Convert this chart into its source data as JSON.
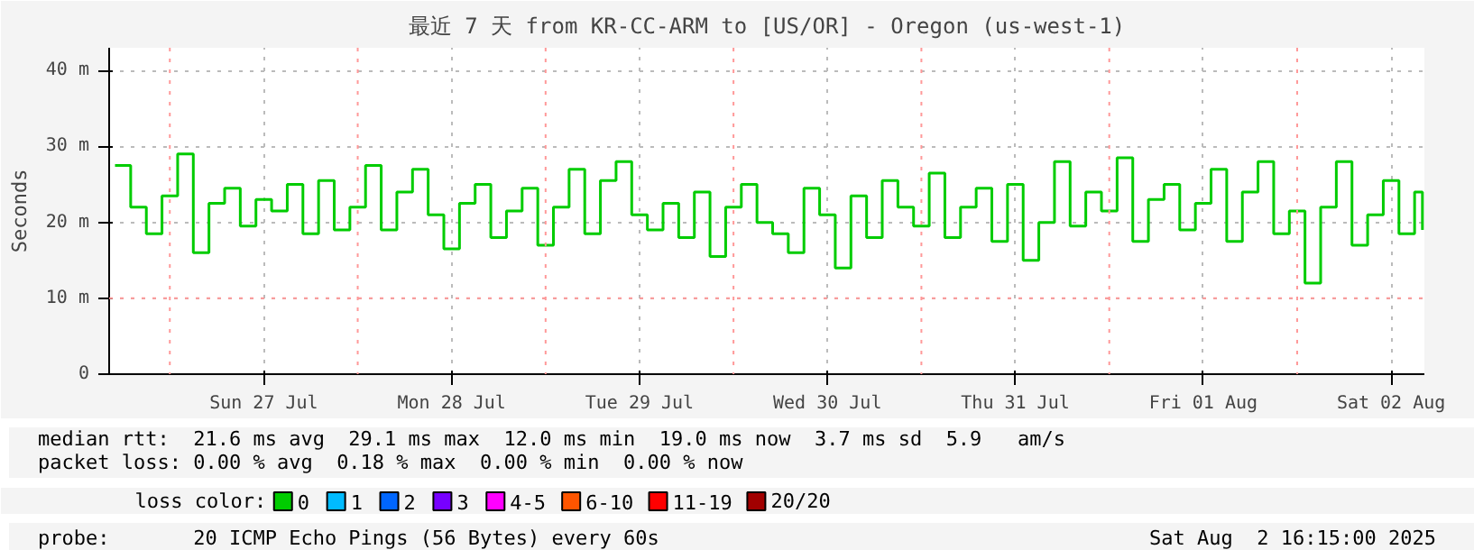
{
  "chart_data": {
    "type": "step",
    "title": "最近 7 天 from KR-CC-ARM to [US/OR] - Oregon (us-west-1)",
    "ylabel": "Seconds",
    "legend_title": "loss color:",
    "legend": "bottom",
    "grid": true,
    "line_style": "solid",
    "xlim": [
      "2025-07-26T16:15",
      "2025-08-02T16:15"
    ],
    "xticks": [
      {
        "value": "2025-07-27T12:00",
        "label": "Sun 27 Jul"
      },
      {
        "value": "2025-07-28T12:00",
        "label": "Mon 28 Jul"
      },
      {
        "value": "2025-07-29T12:00",
        "label": "Tue 29 Jul"
      },
      {
        "value": "2025-07-30T12:00",
        "label": "Wed 30 Jul"
      },
      {
        "value": "2025-07-31T12:00",
        "label": "Thu 31 Jul"
      },
      {
        "value": "2025-08-01T12:00",
        "label": "Fri 01 Aug"
      },
      {
        "value": "2025-08-02T12:00",
        "label": "Sat 02 Aug"
      }
    ],
    "ylim": [
      0,
      43
    ],
    "yticks": [
      0,
      {
        "value": 10,
        "label": "10 m"
      },
      {
        "value": 20,
        "label": "20 m"
      },
      {
        "value": 30,
        "label": "30 m"
      },
      {
        "value": 40,
        "label": "40 m"
      }
    ],
    "ref_lines": [
      {
        "axis": "x",
        "value": "2025-07-27T00:00",
        "color": "#ff9999",
        "line_style": "dotted"
      },
      {
        "axis": "x",
        "value": "2025-07-28T00:00",
        "color": "#ff9999",
        "line_style": "dotted"
      },
      {
        "axis": "x",
        "value": "2025-07-29T00:00",
        "color": "#ff9999",
        "line_style": "dotted"
      },
      {
        "axis": "x",
        "value": "2025-07-30T00:00",
        "color": "#ff9999",
        "line_style": "dotted"
      },
      {
        "axis": "x",
        "value": "2025-07-31T00:00",
        "color": "#ff9999",
        "line_style": "dotted"
      },
      {
        "axis": "x",
        "value": "2025-08-01T00:00",
        "color": "#ff9999",
        "line_style": "dotted"
      },
      {
        "axis": "x",
        "value": "2025-08-02T00:00",
        "color": "#ff9999",
        "line_style": "dotted"
      },
      {
        "axis": "y",
        "value": 10,
        "color": "#ff9999",
        "line_style": "dotted"
      }
    ],
    "x": [
      "2025-07-26T17:00",
      "2025-07-26T19:00",
      "2025-07-26T21:00",
      "2025-07-26T23:00",
      "2025-07-27T01:00",
      "2025-07-27T03:00",
      "2025-07-27T05:00",
      "2025-07-27T07:00",
      "2025-07-27T09:00",
      "2025-07-27T11:00",
      "2025-07-27T13:00",
      "2025-07-27T15:00",
      "2025-07-27T17:00",
      "2025-07-27T19:00",
      "2025-07-27T21:00",
      "2025-07-27T23:00",
      "2025-07-28T01:00",
      "2025-07-28T03:00",
      "2025-07-28T05:00",
      "2025-07-28T07:00",
      "2025-07-28T09:00",
      "2025-07-28T11:00",
      "2025-07-28T13:00",
      "2025-07-28T15:00",
      "2025-07-28T17:00",
      "2025-07-28T19:00",
      "2025-07-28T21:00",
      "2025-07-28T23:00",
      "2025-07-29T01:00",
      "2025-07-29T03:00",
      "2025-07-29T05:00",
      "2025-07-29T07:00",
      "2025-07-29T09:00",
      "2025-07-29T11:00",
      "2025-07-29T13:00",
      "2025-07-29T15:00",
      "2025-07-29T17:00",
      "2025-07-29T19:00",
      "2025-07-29T21:00",
      "2025-07-29T23:00",
      "2025-07-30T01:00",
      "2025-07-30T03:00",
      "2025-07-30T05:00",
      "2025-07-30T07:00",
      "2025-07-30T09:00",
      "2025-07-30T11:00",
      "2025-07-30T13:00",
      "2025-07-30T15:00",
      "2025-07-30T17:00",
      "2025-07-30T19:00",
      "2025-07-30T21:00",
      "2025-07-30T23:00",
      "2025-07-31T01:00",
      "2025-07-31T03:00",
      "2025-07-31T05:00",
      "2025-07-31T07:00",
      "2025-07-31T09:00",
      "2025-07-31T11:00",
      "2025-07-31T13:00",
      "2025-07-31T15:00",
      "2025-07-31T17:00",
      "2025-07-31T19:00",
      "2025-07-31T21:00",
      "2025-07-31T23:00",
      "2025-08-01T01:00",
      "2025-08-01T03:00",
      "2025-08-01T05:00",
      "2025-08-01T07:00",
      "2025-08-01T09:00",
      "2025-08-01T11:00",
      "2025-08-01T13:00",
      "2025-08-01T15:00",
      "2025-08-01T17:00",
      "2025-08-01T19:00",
      "2025-08-01T21:00",
      "2025-08-01T23:00",
      "2025-08-02T01:00",
      "2025-08-02T03:00",
      "2025-08-02T05:00",
      "2025-08-02T07:00",
      "2025-08-02T09:00",
      "2025-08-02T11:00",
      "2025-08-02T13:00",
      "2025-08-02T15:00",
      "2025-08-02T16:00"
    ],
    "series": [
      {
        "name": "0",
        "color": "#00cc00",
        "values": [
          27.5,
          22,
          18.5,
          23.5,
          29,
          16,
          22.5,
          24.5,
          19.5,
          23,
          21.5,
          25,
          18.5,
          25.5,
          19,
          22,
          27.5,
          19,
          24,
          27,
          21,
          16.5,
          22.5,
          25,
          18,
          21.5,
          24.5,
          17,
          22,
          27,
          18.5,
          25.5,
          28,
          21,
          19,
          22.5,
          18,
          24,
          15.5,
          22,
          25,
          20,
          18.5,
          16,
          24.5,
          21,
          14,
          23.5,
          18,
          25.5,
          22,
          19.5,
          26.5,
          18,
          22,
          24.5,
          17.5,
          25,
          15,
          20,
          28,
          19.5,
          24,
          21.5,
          28.5,
          17.5,
          23,
          25,
          19,
          22.5,
          27,
          17.5,
          24,
          28,
          18.5,
          21.5,
          12,
          22,
          28,
          17,
          21,
          25.5,
          18.5,
          24,
          19
        ]
      },
      {
        "name": "1",
        "color": "#00bbff",
        "values": [
          null,
          null,
          null,
          null,
          null,
          null,
          null,
          null,
          null,
          null,
          null,
          null,
          null,
          null,
          null,
          null,
          null,
          null,
          null,
          null,
          null,
          null,
          null,
          null,
          null,
          null,
          null,
          null,
          null,
          null,
          null,
          null,
          null,
          null,
          null,
          null,
          null,
          null,
          null,
          null,
          null,
          null,
          null,
          null,
          null,
          null,
          null,
          null,
          null,
          null,
          null,
          null,
          null,
          null,
          null,
          null,
          null,
          null,
          null,
          null,
          null,
          null,
          null,
          null,
          null,
          null,
          null,
          null,
          null,
          null,
          null,
          null,
          null,
          null,
          null,
          null,
          null,
          null,
          null,
          null,
          null,
          null,
          null,
          null,
          null
        ]
      },
      {
        "name": "2",
        "color": "#0066ff",
        "values": [
          null,
          null,
          null,
          null,
          null,
          null,
          null,
          null,
          null,
          null,
          null,
          null,
          null,
          null,
          null,
          null,
          null,
          null,
          null,
          null,
          null,
          null,
          null,
          null,
          null,
          null,
          null,
          null,
          null,
          null,
          null,
          null,
          null,
          null,
          null,
          null,
          null,
          null,
          null,
          null,
          null,
          null,
          null,
          null,
          null,
          null,
          null,
          null,
          null,
          null,
          null,
          null,
          null,
          null,
          null,
          null,
          null,
          null,
          null,
          null,
          null,
          null,
          null,
          null,
          null,
          null,
          null,
          null,
          null,
          null,
          null,
          null,
          null,
          null,
          null,
          null,
          null,
          null,
          null,
          null,
          null,
          null,
          null,
          null,
          null
        ]
      },
      {
        "name": "3",
        "color": "#7700ff",
        "values": [
          null,
          null,
          null,
          null,
          null,
          null,
          null,
          null,
          null,
          null,
          null,
          null,
          null,
          null,
          null,
          null,
          null,
          null,
          null,
          null,
          null,
          null,
          null,
          null,
          null,
          null,
          null,
          null,
          null,
          null,
          null,
          null,
          null,
          null,
          null,
          null,
          null,
          null,
          null,
          null,
          null,
          null,
          null,
          null,
          null,
          null,
          null,
          null,
          null,
          null,
          null,
          null,
          null,
          null,
          null,
          null,
          null,
          null,
          null,
          null,
          null,
          null,
          null,
          null,
          null,
          null,
          null,
          null,
          null,
          null,
          null,
          null,
          null,
          null,
          null,
          null,
          null,
          null,
          null,
          null,
          null,
          null,
          null,
          null,
          null
        ]
      },
      {
        "name": "4-5",
        "color": "#ff00ff",
        "values": [
          null,
          null,
          null,
          null,
          null,
          null,
          null,
          null,
          null,
          null,
          null,
          null,
          null,
          null,
          null,
          null,
          null,
          null,
          null,
          null,
          null,
          null,
          null,
          null,
          null,
          null,
          null,
          null,
          null,
          null,
          null,
          null,
          null,
          null,
          null,
          null,
          null,
          null,
          null,
          null,
          null,
          null,
          null,
          null,
          null,
          null,
          null,
          null,
          null,
          null,
          null,
          null,
          null,
          null,
          null,
          null,
          null,
          null,
          null,
          null,
          null,
          null,
          null,
          null,
          null,
          null,
          null,
          null,
          null,
          null,
          null,
          null,
          null,
          null,
          null,
          null,
          null,
          null,
          null,
          null,
          null,
          null,
          null,
          null,
          null
        ]
      },
      {
        "name": "6-10",
        "color": "#ff5500",
        "values": [
          null,
          null,
          null,
          null,
          null,
          null,
          null,
          null,
          null,
          null,
          null,
          null,
          null,
          null,
          null,
          null,
          null,
          null,
          null,
          null,
          null,
          null,
          null,
          null,
          null,
          null,
          null,
          null,
          null,
          null,
          null,
          null,
          null,
          null,
          null,
          null,
          null,
          null,
          null,
          null,
          null,
          null,
          null,
          null,
          null,
          null,
          null,
          null,
          null,
          null,
          null,
          null,
          null,
          null,
          null,
          null,
          null,
          null,
          null,
          null,
          null,
          null,
          null,
          null,
          null,
          null,
          null,
          null,
          null,
          null,
          null,
          null,
          null,
          null,
          null,
          null,
          null,
          null,
          null,
          null,
          null,
          null,
          null,
          null,
          null
        ]
      },
      {
        "name": "11-19",
        "color": "#ff0000",
        "values": [
          null,
          null,
          null,
          null,
          null,
          null,
          null,
          null,
          null,
          null,
          null,
          null,
          null,
          null,
          null,
          null,
          null,
          null,
          null,
          null,
          null,
          null,
          null,
          null,
          null,
          null,
          null,
          null,
          null,
          null,
          null,
          null,
          null,
          null,
          null,
          null,
          null,
          null,
          null,
          null,
          null,
          null,
          null,
          null,
          null,
          null,
          null,
          null,
          null,
          null,
          null,
          null,
          null,
          null,
          null,
          null,
          null,
          null,
          null,
          null,
          null,
          null,
          null,
          null,
          null,
          null,
          null,
          null,
          null,
          null,
          null,
          null,
          null,
          null,
          null,
          null,
          null,
          null,
          null,
          null,
          null,
          null,
          null,
          null,
          null
        ]
      },
      {
        "name": "20/20",
        "color": "#a10000",
        "values": [
          null,
          null,
          null,
          null,
          null,
          null,
          null,
          null,
          null,
          null,
          null,
          null,
          null,
          null,
          null,
          null,
          null,
          null,
          null,
          null,
          null,
          null,
          null,
          null,
          null,
          null,
          null,
          null,
          null,
          null,
          null,
          null,
          null,
          null,
          null,
          null,
          null,
          null,
          null,
          null,
          null,
          null,
          null,
          null,
          null,
          null,
          null,
          null,
          null,
          null,
          null,
          null,
          null,
          null,
          null,
          null,
          null,
          null,
          null,
          null,
          null,
          null,
          null,
          null,
          null,
          null,
          null,
          null,
          null,
          null,
          null,
          null,
          null,
          null,
          null,
          null,
          null,
          null,
          null,
          null,
          null,
          null,
          null,
          null,
          null
        ]
      }
    ],
    "annotations": [
      "median rtt:  21.6 ms avg  29.1 ms max  12.0 ms min  19.0 ms now  3.7 ms sd  5.9   am/s",
      "packet loss: 0.00 % avg  0.18 % max  0.00 % min  0.00 % now",
      "probe:       20 ICMP Echo Pings (56 Bytes) every 60s",
      "Sat Aug  2 16:15:00 2025"
    ]
  }
}
